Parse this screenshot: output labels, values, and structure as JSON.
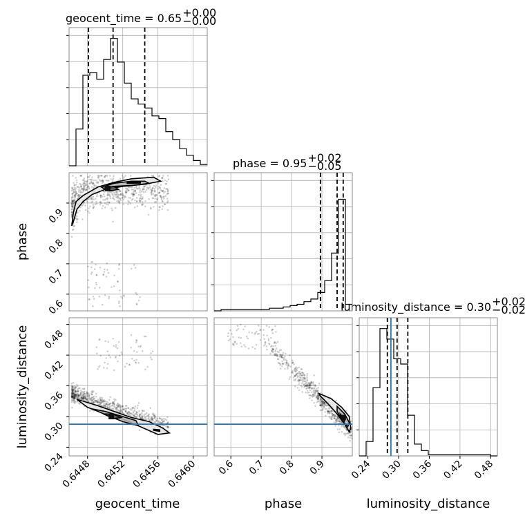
{
  "chart_data": {
    "type": "corner",
    "parameters": [
      "geocent_time",
      "phase",
      "luminosity_distance"
    ],
    "colors": {
      "truth": "#3274ae",
      "contour": "#000000",
      "hist": "#000000",
      "grid": "#b0b0b0"
    },
    "titles": [
      {
        "name": "geocent_time",
        "median": "0.65",
        "plus": "+0.00",
        "minus": "−0.00"
      },
      {
        "name": "phase",
        "median": "0.95",
        "plus": "+0.02",
        "minus": "−0.05"
      },
      {
        "name": "luminosity_distance",
        "median": "0.30",
        "plus": "+0.02",
        "minus": "−0.02"
      }
    ],
    "axes": {
      "geocent_time": {
        "range": [
          0.64459,
          0.64616
        ],
        "ticks": [
          0.6448,
          0.6452,
          0.6456,
          0.646
        ],
        "tick_labels": [
          "0.6448",
          "0.6452",
          "0.6456",
          "0.6460"
        ]
      },
      "phase": {
        "range": [
          0.545,
          1.0
        ],
        "ticks": [
          0.6,
          0.7,
          0.8,
          0.9
        ],
        "tick_labels": [
          "0.6",
          "0.7",
          "0.8",
          "0.9"
        ]
      },
      "luminosity_distance": {
        "range": [
          0.223,
          0.493
        ],
        "ticks": [
          0.24,
          0.3,
          0.36,
          0.42,
          0.48
        ],
        "tick_labels": [
          "0.24",
          "0.30",
          "0.36",
          "0.42",
          "0.48"
        ]
      }
    },
    "truths": {
      "geocent_time": null,
      "phase": null,
      "luminosity_distance": 0.285
    },
    "quantiles": {
      "geocent_time": [
        0.64481,
        0.64509,
        0.64545
      ],
      "phase": [
        0.895,
        0.95,
        0.97
      ],
      "luminosity_distance": [
        0.278,
        0.297,
        0.318
      ]
    },
    "histograms": {
      "geocent_time": {
        "edges_start": 0.64459,
        "bin_width": 7.85e-05,
        "counts": [
          0.0,
          0.28,
          0.69,
          0.71,
          0.66,
          0.81,
          0.97,
          0.79,
          0.63,
          0.51,
          0.47,
          0.44,
          0.38,
          0.36,
          0.26,
          0.2,
          0.13,
          0.08,
          0.04,
          0.01
        ]
      },
      "phase": {
        "edges_start": 0.545,
        "bin_width": 0.02275,
        "counts": [
          0.0,
          0.01,
          0.01,
          0.01,
          0.01,
          0.01,
          0.01,
          0.01,
          0.02,
          0.02,
          0.03,
          0.04,
          0.05,
          0.07,
          0.09,
          0.14,
          0.23,
          0.44,
          0.85,
          0.05
        ]
      },
      "luminosity_distance": {
        "edges_start": 0.223,
        "bin_width": 0.0135,
        "counts": [
          0.0,
          0.11,
          0.52,
          0.97,
          0.89,
          0.74,
          0.7,
          0.31,
          0.09,
          0.04,
          0.01,
          0.01,
          0.01,
          0.01,
          0.01,
          0.01,
          0.01,
          0.01,
          0.01,
          0.0
        ]
      }
    },
    "contours": {
      "phase_vs_geocent_time": [
        {
          "level": "outer",
          "points": [
            [
              0.64462,
              0.825
            ],
            [
              0.64464,
              0.87
            ],
            [
              0.64467,
              0.905
            ],
            [
              0.64475,
              0.925
            ],
            [
              0.64492,
              0.953
            ],
            [
              0.6451,
              0.968
            ],
            [
              0.6453,
              0.98
            ],
            [
              0.64555,
              0.985
            ],
            [
              0.64563,
              0.972
            ],
            [
              0.64545,
              0.962
            ],
            [
              0.6452,
              0.955
            ],
            [
              0.645,
              0.945
            ],
            [
              0.64485,
              0.928
            ],
            [
              0.64475,
              0.905
            ],
            [
              0.64468,
              0.88
            ],
            [
              0.64464,
              0.84
            ]
          ]
        },
        {
          "level": "middle",
          "points": [
            [
              0.64496,
              0.952
            ],
            [
              0.6451,
              0.965
            ],
            [
              0.6453,
              0.972
            ],
            [
              0.64545,
              0.972
            ],
            [
              0.6455,
              0.965
            ],
            [
              0.6453,
              0.958
            ],
            [
              0.6451,
              0.955
            ],
            [
              0.645,
              0.945
            ]
          ]
        },
        {
          "level": "inner",
          "points": [
            [
              0.645,
              0.95
            ],
            [
              0.6451,
              0.955
            ],
            [
              0.64515,
              0.945
            ],
            [
              0.64505,
              0.94
            ]
          ]
        },
        {
          "level": "core",
          "points": [
            [
              0.64525,
              0.968
            ],
            [
              0.6454,
              0.97
            ],
            [
              0.6454,
              0.966
            ],
            [
              0.64525,
              0.965
            ]
          ]
        }
      ],
      "luminosity_distance_vs_geocent_time": [
        {
          "level": "outer",
          "points": [
            [
              0.64468,
              0.333
            ],
            [
              0.6448,
              0.318
            ],
            [
              0.645,
              0.305
            ],
            [
              0.6452,
              0.295
            ],
            [
              0.6454,
              0.28
            ],
            [
              0.6456,
              0.265
            ],
            [
              0.64573,
              0.268
            ],
            [
              0.64565,
              0.278
            ],
            [
              0.6455,
              0.29
            ],
            [
              0.6453,
              0.298
            ],
            [
              0.6451,
              0.31
            ],
            [
              0.6449,
              0.322
            ],
            [
              0.64475,
              0.33
            ]
          ]
        },
        {
          "level": "middle",
          "points": [
            [
              0.64485,
              0.315
            ],
            [
              0.645,
              0.304
            ],
            [
              0.6452,
              0.29
            ],
            [
              0.64538,
              0.282
            ],
            [
              0.64535,
              0.292
            ],
            [
              0.6452,
              0.3
            ],
            [
              0.645,
              0.31
            ]
          ]
        },
        {
          "level": "inner",
          "points": [
            [
              0.64498,
              0.305
            ],
            [
              0.6451,
              0.296
            ],
            [
              0.64518,
              0.298
            ],
            [
              0.64508,
              0.305
            ]
          ]
        },
        {
          "level": "core",
          "points": [
            [
              0.64555,
              0.273
            ],
            [
              0.64562,
              0.271
            ],
            [
              0.64562,
              0.274
            ],
            [
              0.64555,
              0.275
            ]
          ]
        }
      ],
      "luminosity_distance_vs_phase": [
        {
          "level": "outer",
          "points": [
            [
              0.89,
              0.345
            ],
            [
              0.93,
              0.335
            ],
            [
              0.965,
              0.318
            ],
            [
              0.99,
              0.3
            ],
            [
              0.995,
              0.278
            ],
            [
              0.99,
              0.27
            ],
            [
              0.975,
              0.285
            ],
            [
              0.95,
              0.305
            ],
            [
              0.92,
              0.325
            ],
            [
              0.895,
              0.34
            ]
          ]
        },
        {
          "level": "middle",
          "points": [
            [
              0.95,
              0.32
            ],
            [
              0.975,
              0.305
            ],
            [
              0.99,
              0.288
            ],
            [
              0.985,
              0.28
            ],
            [
              0.97,
              0.29
            ],
            [
              0.95,
              0.31
            ]
          ]
        },
        {
          "level": "inner",
          "points": [
            [
              0.96,
              0.305
            ],
            [
              0.975,
              0.295
            ],
            [
              0.972,
              0.288
            ],
            [
              0.962,
              0.298
            ]
          ]
        }
      ]
    },
    "densest_marks": {
      "phase_vs_geocent_time": [
        0.64503,
        0.948
      ],
      "luminosity_distance_vs_geocent_time": [
        0.64507,
        0.3
      ],
      "luminosity_distance_vs_phase": [
        0.97,
        0.298
      ]
    }
  }
}
